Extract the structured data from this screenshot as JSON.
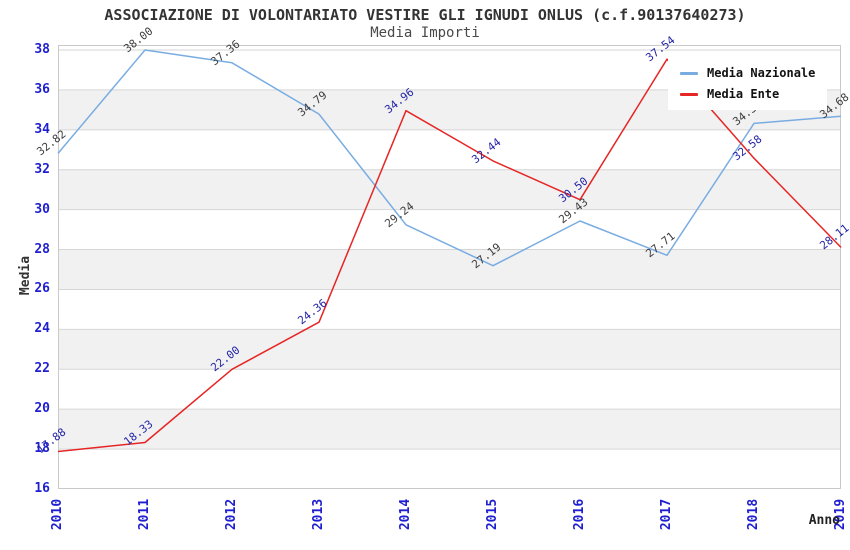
{
  "header": {
    "title": "ASSOCIAZIONE DI VOLONTARIATO VESTIRE GLI IGNUDI ONLUS (c.f.90137640273)",
    "subtitle": "Media Importi"
  },
  "chart_data": {
    "type": "line",
    "title": "ASSOCIAZIONE DI VOLONTARIATO VESTIRE GLI IGNUDI ONLUS (c.f.90137640273)",
    "subtitle": "Media Importi",
    "xlabel": "Anno",
    "ylabel": "Media",
    "x": [
      "2010",
      "2011",
      "2012",
      "2013",
      "2014",
      "2015",
      "2016",
      "2017",
      "2018",
      "2019"
    ],
    "yticks": [
      16,
      18,
      20,
      22,
      24,
      26,
      28,
      30,
      32,
      34,
      36,
      38
    ],
    "ylim": [
      16,
      38.25
    ],
    "grid": "horizontal gridlines with alternating gray bands",
    "legend_position": "top-right",
    "series": [
      {
        "name": "Media Nazionale",
        "color": "#79ade2",
        "label_color": "#3d3d3d",
        "values": [
          32.82,
          38.0,
          37.36,
          34.79,
          29.24,
          27.19,
          29.43,
          27.71,
          34.32,
          34.68
        ]
      },
      {
        "name": "Media Ente",
        "color": "#e62525",
        "label_color": "#2424a8",
        "values": [
          17.88,
          18.33,
          22.0,
          24.36,
          34.96,
          32.44,
          30.5,
          37.54,
          32.58,
          28.11
        ]
      }
    ]
  },
  "colors": {
    "axis_tick_text": "#1f1fd1",
    "grid_line": "#d6d6d6",
    "band_fill": "#f1f1f1",
    "plot_border": "#c9c9c9",
    "title_text": "#333333",
    "background": "#ffffff"
  }
}
